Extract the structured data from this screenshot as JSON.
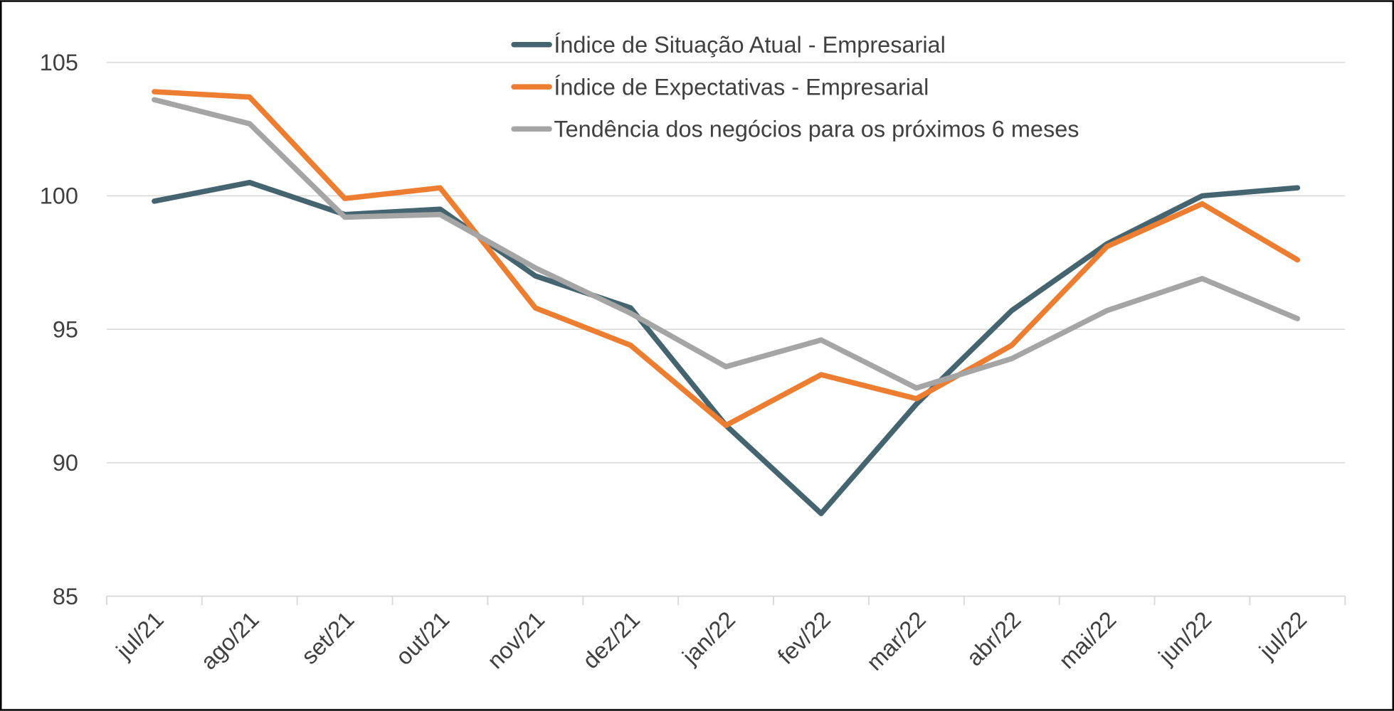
{
  "chart_data": {
    "type": "line",
    "categories": [
      "jul/21",
      "ago/21",
      "set/21",
      "out/21",
      "nov/21",
      "dez/21",
      "jan/22",
      "fev/22",
      "mar/22",
      "abr/22",
      "mai/22",
      "jun/22",
      "jul/22"
    ],
    "series": [
      {
        "name": "Índice de Situação Atual - Empresarial",
        "color": "#44646f",
        "values": [
          99.8,
          100.5,
          99.3,
          99.5,
          97.0,
          95.8,
          91.4,
          88.1,
          92.2,
          95.7,
          98.2,
          100.0,
          100.3
        ]
      },
      {
        "name": "Índice de Expectativas - Empresarial",
        "color": "#ed7d31",
        "values": [
          103.9,
          103.7,
          99.9,
          100.3,
          95.8,
          94.4,
          91.4,
          93.3,
          92.4,
          94.4,
          98.1,
          99.7,
          97.6
        ]
      },
      {
        "name": "Tendência dos negócios para os próximos 6 meses",
        "color": "#a5a5a5",
        "values": [
          103.6,
          102.7,
          99.2,
          99.3,
          97.3,
          95.6,
          93.6,
          94.6,
          92.8,
          93.9,
          95.7,
          96.9,
          95.4
        ]
      }
    ],
    "ylim": [
      85,
      105
    ],
    "yticks": [
      85,
      90,
      95,
      100,
      105
    ],
    "grid": true,
    "legend": "top"
  }
}
